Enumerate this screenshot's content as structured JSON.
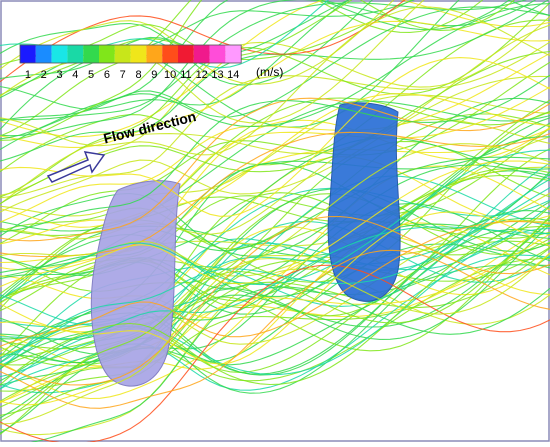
{
  "colorbar": {
    "ticks": [
      "1",
      "2",
      "3",
      "4",
      "5",
      "6",
      "7",
      "8",
      "9",
      "10",
      "11",
      "12",
      "13",
      "14"
    ],
    "colors": [
      "#1a1aff",
      "#1a8cff",
      "#1ae6e6",
      "#1ad9a6",
      "#33d94d",
      "#80e61a",
      "#c8e61a",
      "#f0e61a",
      "#ffa61a",
      "#ff4d1a",
      "#f01a33",
      "#f01a8c",
      "#ff4dd9",
      "#ff99ff"
    ],
    "unit": "(m/s)"
  },
  "annotation": "Flow direction"
}
